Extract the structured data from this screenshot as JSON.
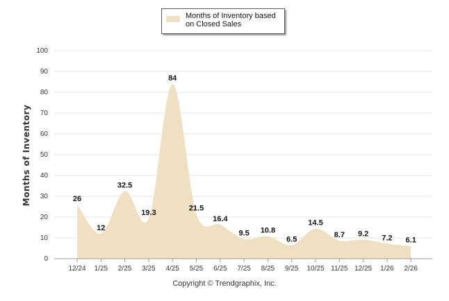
{
  "colors": {
    "area": "#efdfc3",
    "grid": "#e6e6e6",
    "axis": "#999999"
  },
  "chart_data": {
    "type": "area",
    "title": "",
    "legend": [
      "Months of Inventory based on Closed Sales"
    ],
    "legend_position": "top-center",
    "xlabel": "",
    "ylabel": "Months of Inventory",
    "ylim": [
      0,
      100
    ],
    "yticks": [
      0,
      10,
      20,
      30,
      40,
      50,
      60,
      70,
      80,
      90,
      100
    ],
    "grid": true,
    "categories": [
      "12/24",
      "1/25",
      "2/25",
      "3/25",
      "4/25",
      "5/25",
      "6/25",
      "7/25",
      "8/25",
      "9/25",
      "10/25",
      "11/25",
      "12/25",
      "1/26",
      "2/26"
    ],
    "series": [
      {
        "name": "Months of Inventory based on Closed Sales",
        "values": [
          26,
          12,
          32.5,
          19.3,
          84,
          21.5,
          16.4,
          9.5,
          10.8,
          6.5,
          14.5,
          8.7,
          9.2,
          7.2,
          6.1
        ]
      }
    ]
  },
  "legend": {
    "label": "Months of Inventory based on Closed Sales"
  },
  "footer": {
    "copyright": "Copyright © Trendgraphix, Inc."
  }
}
